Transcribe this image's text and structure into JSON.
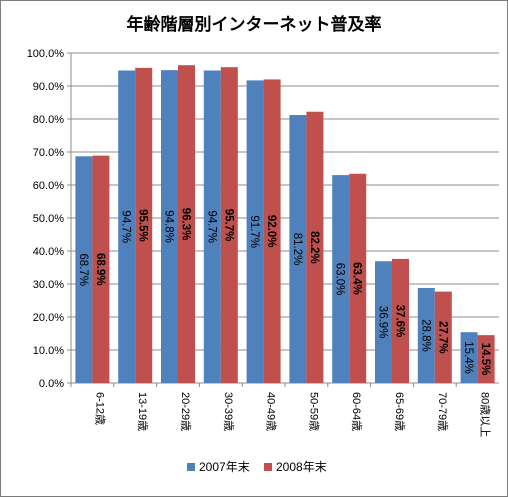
{
  "chart_data": {
    "type": "bar",
    "title": "年齢階層別インターネット普及率",
    "categories": [
      "6-12歳",
      "13-19歳",
      "20-29歳",
      "30-39歳",
      "40-49歳",
      "50-59歳",
      "60-64歳",
      "65-69歳",
      "70-79歳",
      "80歳以上"
    ],
    "series": [
      {
        "name": "2007年末",
        "color": "#4f81bd",
        "values": [
          68.7,
          94.7,
          94.8,
          94.7,
          91.7,
          81.2,
          63.0,
          36.9,
          28.8,
          15.4
        ],
        "labels": [
          "68.7%",
          "94.7%",
          "94.8%",
          "94.7%",
          "91.7%",
          "81.2%",
          "63.0%",
          "36.9%",
          "28.8%",
          "15.4%"
        ],
        "label_bold": false
      },
      {
        "name": "2008年末",
        "color": "#c0504d",
        "values": [
          68.9,
          95.5,
          96.3,
          95.7,
          92.0,
          82.2,
          63.4,
          37.6,
          27.7,
          14.5
        ],
        "labels": [
          "68.9%",
          "95.5%",
          "96.3%",
          "95.7%",
          "92.0%",
          "82.2%",
          "63.4%",
          "37.6%",
          "27.7%",
          "14.5%"
        ],
        "label_bold": true
      }
    ],
    "ylim": [
      0,
      100
    ],
    "y_ticks": [
      "0.0%",
      "10.0%",
      "20.0%",
      "30.0%",
      "40.0%",
      "50.0%",
      "60.0%",
      "70.0%",
      "80.0%",
      "90.0%",
      "100.0%"
    ],
    "grid": true,
    "legend": "bottom",
    "xlabel": "",
    "ylabel": ""
  }
}
